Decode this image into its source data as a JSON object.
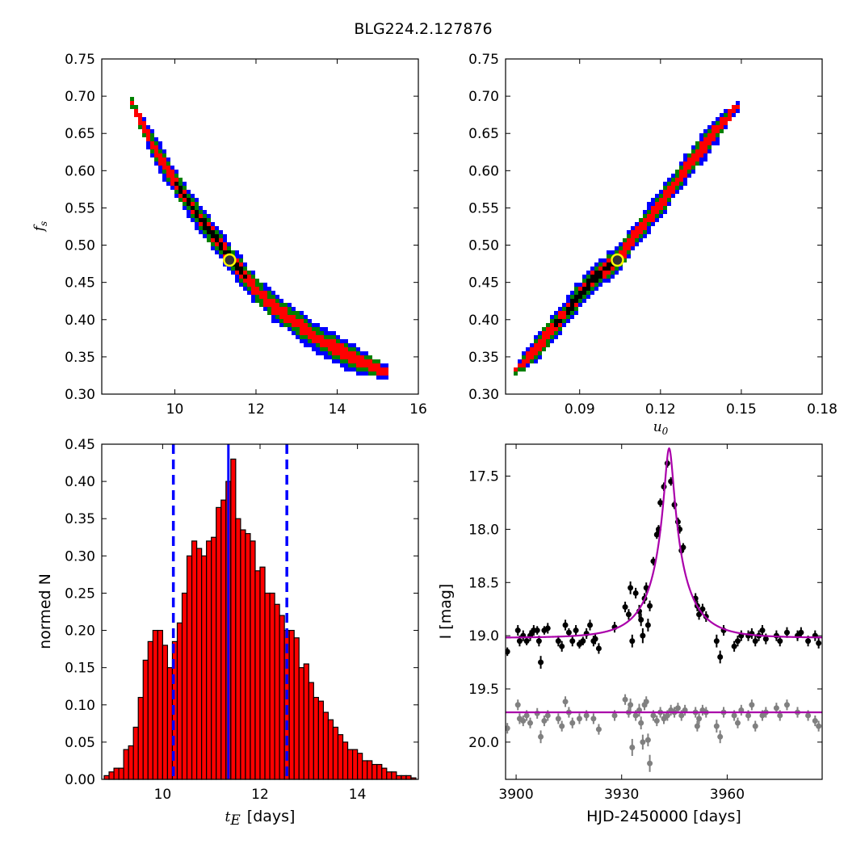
{
  "figure": {
    "title": "BLG224.2.127876"
  },
  "colors": {
    "outer": "#0000ff",
    "middle": "#008000",
    "inner": "#ff0000",
    "core": "#000000",
    "best_fit_marker": "#ffff00",
    "hist_bar": "#ff0000",
    "hist_edge": "#000000",
    "median_line": "#0000ff",
    "model_line": "#aa00aa",
    "data_points": "#000000",
    "residual_points": "#808080"
  },
  "chart_data": [
    {
      "id": "tE_vs_fs",
      "type": "heatmap",
      "xlabel": "",
      "ylabel": "f_s",
      "xlim": [
        8.2,
        16
      ],
      "ylim": [
        0.3,
        0.75
      ],
      "xticks": [
        "10",
        "12",
        "14",
        "16"
      ],
      "xtick_values": [
        10,
        12,
        14,
        16
      ],
      "yticks": [
        "0.30",
        "0.35",
        "0.40",
        "0.45",
        "0.50",
        "0.55",
        "0.60",
        "0.65",
        "0.70",
        "0.75"
      ],
      "ytick_values": [
        0.3,
        0.35,
        0.4,
        0.45,
        0.5,
        0.55,
        0.6,
        0.65,
        0.7,
        0.75
      ],
      "confidence_levels": [
        "outer",
        "middle",
        "inner",
        "core"
      ],
      "ridge": [
        [
          8.9,
          0.695
        ],
        [
          9.5,
          0.63
        ],
        [
          10.0,
          0.585
        ],
        [
          10.5,
          0.545
        ],
        [
          11.0,
          0.51
        ],
        [
          11.4,
          0.48
        ],
        [
          12.0,
          0.44
        ],
        [
          12.5,
          0.415
        ],
        [
          13.0,
          0.395
        ],
        [
          13.5,
          0.375
        ],
        [
          14.0,
          0.36
        ],
        [
          14.5,
          0.345
        ],
        [
          15.2,
          0.33
        ]
      ],
      "best_fit": [
        11.35,
        0.48
      ]
    },
    {
      "id": "u0_vs_fs",
      "type": "heatmap",
      "xlabel": "u_0",
      "ylabel": "",
      "xlim": [
        0.0625,
        0.18
      ],
      "ylim": [
        0.3,
        0.75
      ],
      "xticks": [
        "0.09",
        "0.12",
        "0.15",
        "0.18"
      ],
      "xtick_values": [
        0.09,
        0.12,
        0.15,
        0.18
      ],
      "yticks": [
        "0.30",
        "0.35",
        "0.40",
        "0.45",
        "0.50",
        "0.55",
        "0.60",
        "0.65",
        "0.70",
        "0.75"
      ],
      "ytick_values": [
        0.3,
        0.35,
        0.4,
        0.45,
        0.5,
        0.55,
        0.6,
        0.65,
        0.7,
        0.75
      ],
      "confidence_levels": [
        "outer",
        "middle",
        "inner",
        "core"
      ],
      "ridge": [
        [
          0.066,
          0.33
        ],
        [
          0.075,
          0.365
        ],
        [
          0.085,
          0.41
        ],
        [
          0.095,
          0.455
        ],
        [
          0.104,
          0.48
        ],
        [
          0.11,
          0.51
        ],
        [
          0.12,
          0.555
        ],
        [
          0.13,
          0.605
        ],
        [
          0.14,
          0.65
        ],
        [
          0.148,
          0.685
        ]
      ],
      "best_fit": [
        0.104,
        0.48
      ]
    },
    {
      "id": "tE_histogram",
      "type": "bar",
      "xlabel": "t_E",
      "xlabel_suffix": "[days]",
      "ylabel": "normed N",
      "xlim": [
        8.75,
        15.25
      ],
      "ylim": [
        0,
        0.45
      ],
      "xticks": [
        "10",
        "12",
        "14"
      ],
      "xtick_values": [
        10,
        12,
        14
      ],
      "yticks": [
        "0.00",
        "0.05",
        "0.10",
        "0.15",
        "0.20",
        "0.25",
        "0.30",
        "0.35",
        "0.40",
        "0.45"
      ],
      "ytick_values": [
        0,
        0.05,
        0.1,
        0.15,
        0.2,
        0.25,
        0.3,
        0.35,
        0.4,
        0.45
      ],
      "bin_start": 8.8,
      "bin_width": 0.1,
      "values": [
        0.005,
        0.01,
        0.015,
        0.015,
        0.04,
        0.045,
        0.07,
        0.11,
        0.16,
        0.185,
        0.2,
        0.2,
        0.18,
        0.15,
        0.185,
        0.21,
        0.25,
        0.3,
        0.32,
        0.31,
        0.3,
        0.32,
        0.325,
        0.365,
        0.375,
        0.4,
        0.43,
        0.35,
        0.335,
        0.33,
        0.32,
        0.28,
        0.285,
        0.25,
        0.25,
        0.235,
        0.22,
        0.2,
        0.2,
        0.19,
        0.15,
        0.155,
        0.13,
        0.11,
        0.105,
        0.09,
        0.08,
        0.07,
        0.06,
        0.05,
        0.04,
        0.04,
        0.035,
        0.025,
        0.025,
        0.02,
        0.02,
        0.015,
        0.01,
        0.01,
        0.005,
        0.005,
        0.005,
        0.002
      ],
      "median": 11.35,
      "interval_low": 10.22,
      "interval_high": 12.55
    },
    {
      "id": "light_curve",
      "type": "scatter",
      "xlabel": "HJD-2450000 [days]",
      "ylabel": "I [mag]",
      "xlim": [
        3897,
        3987
      ],
      "ylim": [
        20.35,
        17.2
      ],
      "y_inverted": true,
      "xticks": [
        "3900",
        "3930",
        "3960"
      ],
      "xtick_values": [
        3900,
        3930,
        3960
      ],
      "yticks": [
        "17.5",
        "18.0",
        "18.5",
        "19.0",
        "19.5",
        "20.0"
      ],
      "ytick_values": [
        17.5,
        18.0,
        18.5,
        19.0,
        19.5,
        20.0
      ],
      "model": {
        "t0": 3943.5,
        "tE": 11.35,
        "u0": 0.104,
        "fs": 0.48,
        "baseline": 19.02
      },
      "residual_offset": 19.72,
      "observations": [
        [
          3897.5,
          19.15,
          0.04
        ],
        [
          3900.5,
          18.95,
          0.05
        ],
        [
          3901,
          19.05,
          0.05
        ],
        [
          3902,
          19.0,
          0.05
        ],
        [
          3903,
          19.05,
          0.04
        ],
        [
          3904,
          19.0,
          0.05
        ],
        [
          3904.5,
          18.97,
          0.04
        ],
        [
          3905,
          18.95,
          0.05
        ],
        [
          3906,
          18.95,
          0.04
        ],
        [
          3906.5,
          19.05,
          0.05
        ],
        [
          3907,
          19.25,
          0.06
        ],
        [
          3908,
          18.95,
          0.04
        ],
        [
          3909,
          18.93,
          0.05
        ],
        [
          3912,
          19.05,
          0.05
        ],
        [
          3913,
          19.1,
          0.05
        ],
        [
          3914,
          18.9,
          0.05
        ],
        [
          3915,
          18.97,
          0.04
        ],
        [
          3916,
          19.05,
          0.05
        ],
        [
          3917,
          18.95,
          0.05
        ],
        [
          3918,
          19.08,
          0.04
        ],
        [
          3919,
          19.05,
          0.04
        ],
        [
          3920,
          18.98,
          0.05
        ],
        [
          3921,
          18.9,
          0.05
        ],
        [
          3922,
          19.05,
          0.05
        ],
        [
          3922.5,
          19.03,
          0.05
        ],
        [
          3923.5,
          19.12,
          0.05
        ],
        [
          3928,
          18.92,
          0.05
        ],
        [
          3931,
          18.73,
          0.05
        ],
        [
          3932,
          18.8,
          0.05
        ],
        [
          3932.5,
          18.55,
          0.06
        ],
        [
          3933,
          19.05,
          0.06
        ],
        [
          3934,
          18.6,
          0.05
        ],
        [
          3935,
          18.77,
          0.06
        ],
        [
          3935.5,
          18.85,
          0.06
        ],
        [
          3936,
          19.0,
          0.07
        ],
        [
          3936.5,
          18.65,
          0.05
        ],
        [
          3937,
          18.55,
          0.05
        ],
        [
          3937.5,
          18.9,
          0.06
        ],
        [
          3938,
          18.72,
          0.05
        ],
        [
          3939,
          18.3,
          0.04
        ],
        [
          3940,
          18.05,
          0.04
        ],
        [
          3940.5,
          18.0,
          0.04
        ],
        [
          3941,
          17.75,
          0.04
        ],
        [
          3942,
          17.6,
          0.04
        ],
        [
          3943,
          17.38,
          0.04
        ],
        [
          3944,
          17.55,
          0.04
        ],
        [
          3945,
          17.77,
          0.04
        ],
        [
          3946,
          17.93,
          0.04
        ],
        [
          3946.5,
          18.0,
          0.04
        ],
        [
          3947,
          18.2,
          0.04
        ],
        [
          3947.5,
          18.17,
          0.04
        ],
        [
          3951,
          18.65,
          0.05
        ],
        [
          3951.5,
          18.72,
          0.05
        ],
        [
          3952,
          18.8,
          0.05
        ],
        [
          3953,
          18.75,
          0.05
        ],
        [
          3954,
          18.82,
          0.05
        ],
        [
          3957,
          19.05,
          0.06
        ],
        [
          3958,
          19.2,
          0.06
        ],
        [
          3959,
          18.95,
          0.05
        ],
        [
          3962,
          19.1,
          0.05
        ],
        [
          3963,
          19.05,
          0.05
        ],
        [
          3964,
          19.0,
          0.05
        ],
        [
          3966,
          19.0,
          0.05
        ],
        [
          3967,
          18.98,
          0.05
        ],
        [
          3968,
          19.05,
          0.05
        ],
        [
          3969,
          19.0,
          0.05
        ],
        [
          3970,
          18.95,
          0.05
        ],
        [
          3971,
          19.03,
          0.05
        ],
        [
          3974,
          19.0,
          0.05
        ],
        [
          3975,
          19.05,
          0.05
        ],
        [
          3977,
          18.97,
          0.05
        ],
        [
          3980,
          19.0,
          0.05
        ],
        [
          3981,
          18.97,
          0.05
        ],
        [
          3983,
          19.05,
          0.05
        ],
        [
          3985,
          19.0,
          0.05
        ],
        [
          3986,
          19.07,
          0.05
        ]
      ],
      "residual_values": [
        [
          3897.5,
          19.87,
          0.05
        ],
        [
          3900.5,
          19.65,
          0.05
        ],
        [
          3901,
          19.78,
          0.05
        ],
        [
          3902,
          19.8,
          0.05
        ],
        [
          3903,
          19.75,
          0.05
        ],
        [
          3904,
          19.82,
          0.05
        ],
        [
          3906,
          19.73,
          0.05
        ],
        [
          3907,
          19.95,
          0.06
        ],
        [
          3908,
          19.8,
          0.05
        ],
        [
          3909,
          19.75,
          0.05
        ],
        [
          3912,
          19.78,
          0.05
        ],
        [
          3913,
          19.85,
          0.05
        ],
        [
          3914,
          19.62,
          0.05
        ],
        [
          3915,
          19.72,
          0.05
        ],
        [
          3916,
          19.82,
          0.05
        ],
        [
          3918,
          19.78,
          0.05
        ],
        [
          3920,
          19.75,
          0.05
        ],
        [
          3922,
          19.78,
          0.05
        ],
        [
          3923.5,
          19.88,
          0.05
        ],
        [
          3928,
          19.75,
          0.05
        ],
        [
          3931,
          19.6,
          0.05
        ],
        [
          3932,
          19.72,
          0.05
        ],
        [
          3932.5,
          19.65,
          0.06
        ],
        [
          3933,
          20.05,
          0.08
        ],
        [
          3934,
          19.75,
          0.05
        ],
        [
          3935,
          19.7,
          0.06
        ],
        [
          3935.5,
          19.82,
          0.06
        ],
        [
          3936,
          20.0,
          0.07
        ],
        [
          3936.5,
          19.65,
          0.05
        ],
        [
          3937,
          19.62,
          0.05
        ],
        [
          3937.5,
          19.98,
          0.06
        ],
        [
          3938,
          20.2,
          0.08
        ],
        [
          3939,
          19.75,
          0.05
        ],
        [
          3940,
          19.8,
          0.05
        ],
        [
          3941,
          19.72,
          0.05
        ],
        [
          3942,
          19.78,
          0.05
        ],
        [
          3943,
          19.75,
          0.05
        ],
        [
          3944,
          19.7,
          0.05
        ],
        [
          3945,
          19.72,
          0.05
        ],
        [
          3946,
          19.68,
          0.05
        ],
        [
          3947,
          19.75,
          0.05
        ],
        [
          3948,
          19.7,
          0.05
        ],
        [
          3951,
          19.72,
          0.05
        ],
        [
          3951.5,
          19.85,
          0.05
        ],
        [
          3952,
          19.78,
          0.05
        ],
        [
          3953,
          19.7,
          0.05
        ],
        [
          3954,
          19.72,
          0.05
        ],
        [
          3957,
          19.85,
          0.06
        ],
        [
          3958,
          19.95,
          0.06
        ],
        [
          3959,
          19.72,
          0.05
        ],
        [
          3962,
          19.75,
          0.05
        ],
        [
          3963,
          19.82,
          0.05
        ],
        [
          3964,
          19.7,
          0.05
        ],
        [
          3966,
          19.75,
          0.05
        ],
        [
          3967,
          19.65,
          0.05
        ],
        [
          3968,
          19.85,
          0.05
        ],
        [
          3970,
          19.75,
          0.05
        ],
        [
          3971,
          19.72,
          0.05
        ],
        [
          3974,
          19.68,
          0.05
        ],
        [
          3975,
          19.75,
          0.05
        ],
        [
          3977,
          19.65,
          0.05
        ],
        [
          3980,
          19.72,
          0.05
        ],
        [
          3983,
          19.75,
          0.05
        ],
        [
          3985,
          19.8,
          0.05
        ],
        [
          3986,
          19.85,
          0.05
        ]
      ]
    }
  ]
}
